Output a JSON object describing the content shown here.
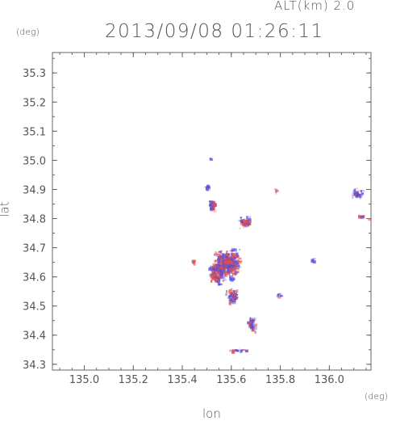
{
  "header": {
    "altitude_label": "ALT(km) 2.0",
    "timestamp": "2013/09/08 01:26:11"
  },
  "chart_data": {
    "type": "heatmap",
    "title": "2013/09/08 01:26:11",
    "annotation": "ALT(km) 2.0",
    "xlabel": "lon",
    "ylabel": "lat",
    "x_unit": "(deg)",
    "y_unit": "(deg)",
    "xlim": [
      134.87,
      136.17
    ],
    "ylim": [
      34.28,
      35.37
    ],
    "x_ticks": [
      135.0,
      135.2,
      135.4,
      135.6,
      135.8,
      136.0
    ],
    "x_tick_labels": [
      "135.0",
      "135.2",
      "135.4",
      "135.6",
      "135.8",
      "136.0"
    ],
    "y_ticks": [
      34.3,
      34.4,
      34.5,
      34.6,
      34.7,
      34.8,
      34.9,
      35.0,
      35.1,
      35.2,
      35.3
    ],
    "y_tick_labels": [
      "34.3",
      "34.4",
      "34.5",
      "34.6",
      "34.7",
      "34.8",
      "34.9",
      "35.0",
      "35.1",
      "35.2",
      "35.3"
    ],
    "grid": false,
    "colors": {
      "positive": "#e05050",
      "negative": "#5050e0",
      "axis": "#666666"
    },
    "clusters": [
      {
        "lon": 135.58,
        "lat": 34.65,
        "r_lon": 0.065,
        "r_lat": 0.06,
        "count": 420,
        "mix": 0.5
      },
      {
        "lon": 135.54,
        "lat": 34.62,
        "r_lon": 0.045,
        "r_lat": 0.05,
        "count": 160,
        "mix": 0.5
      },
      {
        "lon": 135.6,
        "lat": 34.54,
        "r_lon": 0.03,
        "r_lat": 0.035,
        "count": 70,
        "mix": 0.6
      },
      {
        "lon": 135.68,
        "lat": 34.44,
        "r_lon": 0.02,
        "r_lat": 0.03,
        "count": 45,
        "mix": 0.35
      },
      {
        "lon": 135.52,
        "lat": 34.85,
        "r_lon": 0.015,
        "r_lat": 0.03,
        "count": 45,
        "mix": 0.5
      },
      {
        "lon": 135.65,
        "lat": 34.79,
        "r_lon": 0.03,
        "r_lat": 0.025,
        "count": 60,
        "mix": 0.55
      },
      {
        "lon": 135.5,
        "lat": 34.91,
        "r_lon": 0.012,
        "r_lat": 0.01,
        "count": 10,
        "mix": 0.5
      },
      {
        "lon": 135.79,
        "lat": 34.54,
        "r_lon": 0.01,
        "r_lat": 0.01,
        "count": 8,
        "mix": 0.5
      },
      {
        "lon": 135.78,
        "lat": 34.9,
        "r_lon": 0.008,
        "r_lat": 0.008,
        "count": 5,
        "mix": 0.5
      },
      {
        "lon": 135.93,
        "lat": 34.66,
        "r_lon": 0.01,
        "r_lat": 0.008,
        "count": 6,
        "mix": 0.3
      },
      {
        "lon": 136.11,
        "lat": 34.89,
        "r_lon": 0.025,
        "r_lat": 0.02,
        "count": 35,
        "mix": 0.12
      },
      {
        "lon": 136.13,
        "lat": 34.81,
        "r_lon": 0.02,
        "r_lat": 0.008,
        "count": 8,
        "mix": 0.2
      },
      {
        "lon": 136.16,
        "lat": 34.8,
        "r_lon": 0.008,
        "r_lat": 0.008,
        "count": 4,
        "mix": 0.9
      },
      {
        "lon": 135.62,
        "lat": 34.35,
        "r_lon": 0.06,
        "r_lat": 0.006,
        "count": 20,
        "mix": 0.5
      },
      {
        "lon": 135.51,
        "lat": 35.01,
        "r_lon": 0.006,
        "r_lat": 0.004,
        "count": 4,
        "mix": 0.8
      },
      {
        "lon": 135.44,
        "lat": 34.65,
        "r_lon": 0.008,
        "r_lat": 0.02,
        "count": 6,
        "mix": 0.5
      }
    ]
  }
}
